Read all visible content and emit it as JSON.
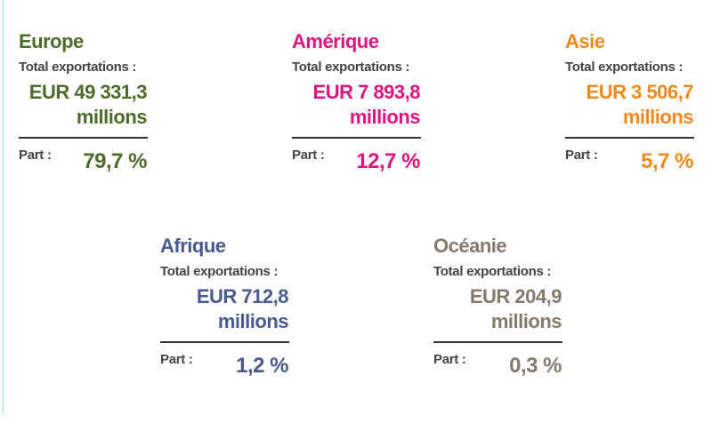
{
  "regions": [
    {
      "name": "Europe",
      "color": "#4d6b2a",
      "exports_label": "Total exportations :",
      "amount_line1": "EUR 49 331,3",
      "amount_line2": "millions",
      "share_label": "Part :",
      "share_value": "79,7 %"
    },
    {
      "name": "Amérique",
      "color": "#e0147f",
      "exports_label": "Total exportations :",
      "amount_line1": "EUR 7 893,8",
      "amount_line2": "millions",
      "share_label": "Part :",
      "share_value": "12,7 %"
    },
    {
      "name": "Asie",
      "color": "#f08a1c",
      "exports_label": "Total exportations :",
      "amount_line1": "EUR 3 506,7",
      "amount_line2": "millions",
      "share_label": "Part :",
      "share_value": "5,7 %"
    },
    {
      "name": "Afrique",
      "color": "#4a5a8f",
      "exports_label": "Total exportations :",
      "amount_line1": "EUR 712,8",
      "amount_line2": "millions",
      "share_label": "Part :",
      "share_value": "1,2 %"
    },
    {
      "name": "Océanie",
      "color": "#857a6b",
      "exports_label": "Total exportations :",
      "amount_line1": "EUR 204,9",
      "amount_line2": "millions",
      "share_label": "Part :",
      "share_value": "0,3 %"
    }
  ]
}
